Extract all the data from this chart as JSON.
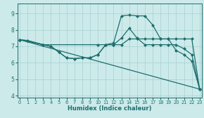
{
  "background_color": "#cceaea",
  "grid_color": "#a8d0d0",
  "line_color": "#1e6e6e",
  "markersize": 2.5,
  "linewidth": 0.9,
  "xlabel": "Humidex (Indice chaleur)",
  "ylim": [
    3.9,
    9.6
  ],
  "xlim": [
    -0.3,
    23.3
  ],
  "yticks": [
    4,
    5,
    6,
    7,
    8,
    9
  ],
  "xticks": [
    0,
    1,
    2,
    3,
    4,
    5,
    6,
    7,
    8,
    9,
    10,
    11,
    12,
    13,
    14,
    15,
    16,
    17,
    18,
    19,
    20,
    21,
    22,
    23
  ],
  "line1_x": [
    0,
    1,
    3,
    4,
    5,
    6,
    7,
    8,
    9,
    10,
    11,
    12,
    13,
    14,
    15,
    16,
    17,
    18,
    19,
    20,
    21,
    22,
    23
  ],
  "line1_y": [
    7.4,
    7.35,
    7.1,
    7.0,
    6.65,
    6.3,
    6.25,
    6.3,
    6.3,
    6.5,
    7.1,
    7.2,
    8.85,
    8.9,
    8.85,
    8.85,
    8.3,
    7.45,
    7.45,
    6.75,
    6.5,
    6.1,
    4.4
  ],
  "line2_x": [
    0,
    1,
    3,
    4,
    5,
    6,
    7,
    8,
    9,
    10,
    11,
    12,
    13,
    14,
    15,
    16,
    17,
    18,
    19,
    20,
    21,
    22,
    23
  ],
  "line2_y": [
    7.4,
    7.35,
    7.1,
    7.0,
    6.65,
    6.3,
    6.25,
    6.3,
    6.3,
    6.5,
    7.1,
    7.1,
    7.5,
    8.1,
    7.5,
    7.1,
    7.1,
    7.1,
    7.1,
    7.1,
    6.85,
    6.5,
    4.4
  ],
  "line3_x": [
    0,
    3,
    10,
    11,
    12,
    13,
    14,
    15,
    16,
    17,
    18,
    19,
    20,
    21,
    22,
    23
  ],
  "line3_y": [
    7.4,
    7.1,
    7.1,
    7.1,
    7.1,
    7.1,
    7.45,
    7.45,
    7.45,
    7.45,
    7.45,
    7.45,
    7.45,
    7.45,
    7.45,
    4.4
  ],
  "line4_x": [
    0,
    23
  ],
  "line4_y": [
    7.4,
    4.4
  ]
}
